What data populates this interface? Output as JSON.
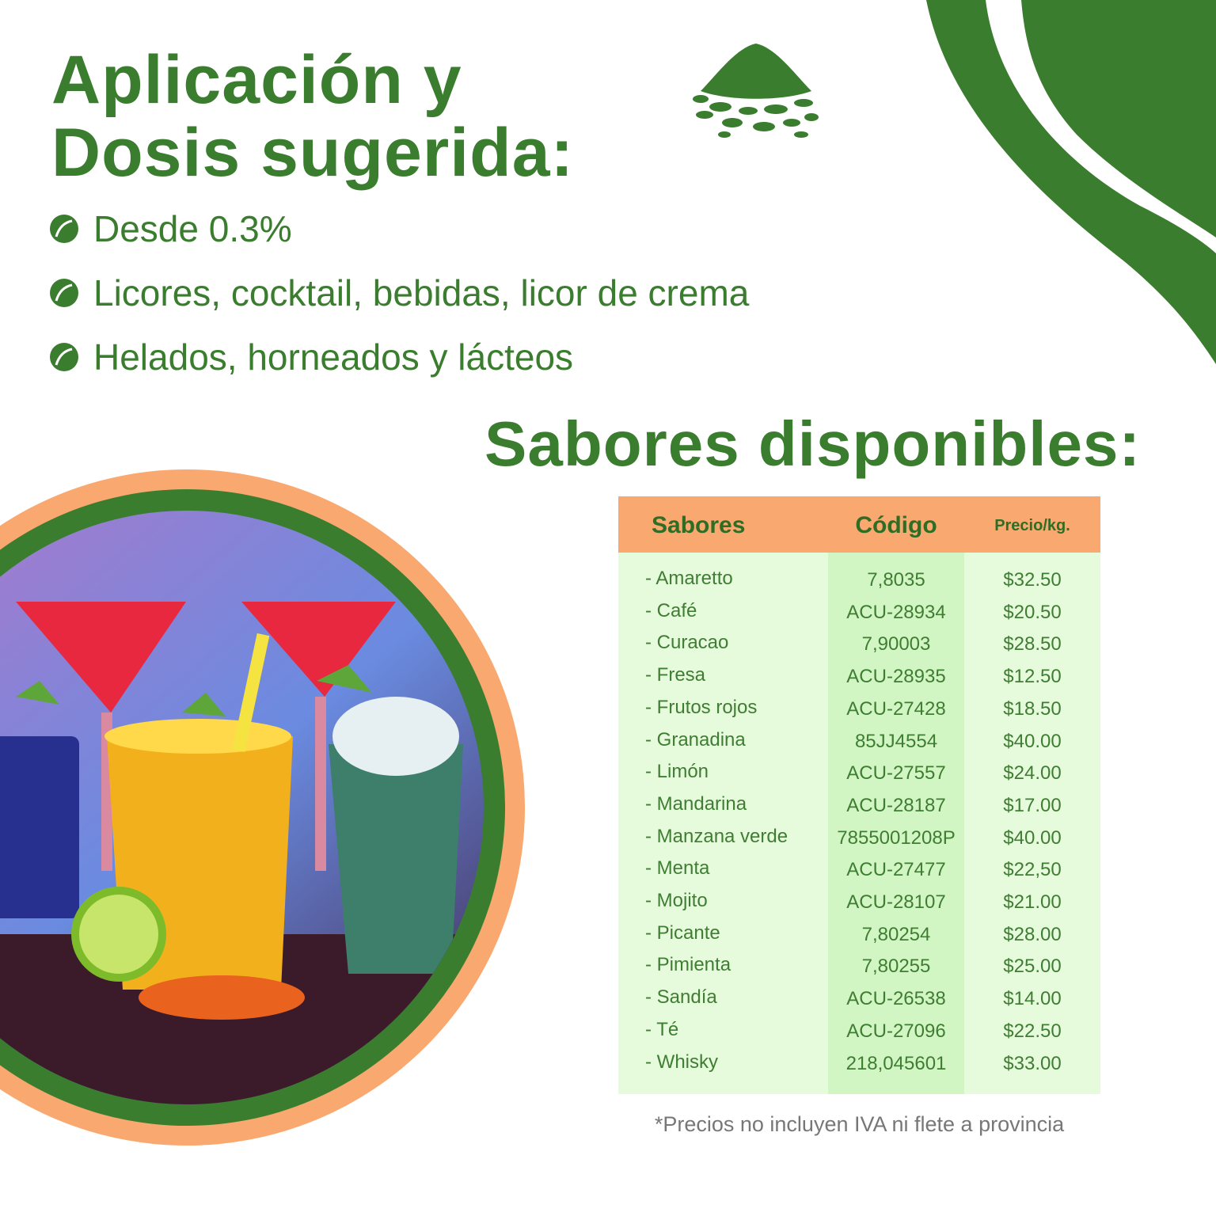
{
  "header": {
    "title_lines": [
      "Aplicación y",
      "Dosis sugerida:"
    ]
  },
  "bullets": [
    "Desde 0.3%",
    "Licores, cocktail, bebidas, licor de crema",
    "Helados, horneados y lácteos"
  ],
  "section_title": "Sabores disponibles:",
  "table": {
    "headers": [
      "Sabores",
      "Código",
      "Precio/kg."
    ],
    "rows": [
      [
        "- Amaretto",
        "7,8035",
        "$32.50"
      ],
      [
        "- Café",
        "ACU-28934",
        "$20.50"
      ],
      [
        "- Curacao",
        "7,90003",
        "$28.50"
      ],
      [
        "- Fresa",
        "ACU-28935",
        "$12.50"
      ],
      [
        "- Frutos rojos",
        "ACU-27428",
        "$18.50"
      ],
      [
        "- Granadina",
        "85JJ4554",
        "$40.00"
      ],
      [
        "- Limón",
        "ACU-27557",
        "$24.00"
      ],
      [
        "- Mandarina",
        "ACU-28187",
        "$17.00"
      ],
      [
        "- Manzana verde",
        "7855001208P",
        "$40.00"
      ],
      [
        "- Menta",
        "ACU-27477",
        "$22,50"
      ],
      [
        "- Mojito",
        "ACU-28107",
        "$21.00"
      ],
      [
        "- Picante",
        "7,80254",
        "$28.00"
      ],
      [
        "- Pimienta",
        "7,80255",
        "$25.00"
      ],
      [
        "- Sandía",
        "ACU-26538",
        "$14.00"
      ],
      [
        "- Té",
        "ACU-27096",
        "$22.50"
      ],
      [
        "- Whisky",
        "218,045601",
        "$33.00"
      ]
    ]
  },
  "footnote": "*Precios no incluyen IVA ni flete a provincia"
}
